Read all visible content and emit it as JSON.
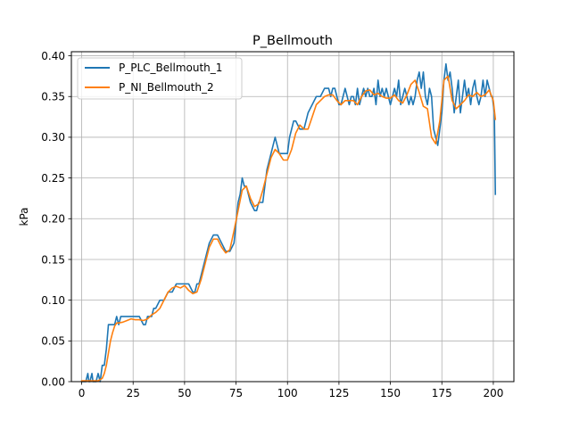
{
  "chart_data": {
    "type": "line",
    "title": "P_Bellmouth",
    "xlabel": "",
    "ylabel": "kPa",
    "xlim": [
      -5,
      210
    ],
    "ylim": [
      0.0,
      0.405
    ],
    "xticks": [
      0,
      25,
      50,
      75,
      100,
      125,
      150,
      175,
      200
    ],
    "yticks": [
      0.0,
      0.05,
      0.1,
      0.15,
      0.2,
      0.25,
      0.3,
      0.35,
      0.4
    ],
    "ytick_labels": [
      "0.00",
      "0.05",
      "0.10",
      "0.15",
      "0.20",
      "0.25",
      "0.30",
      "0.35",
      "0.40"
    ],
    "grid": true,
    "legend_position": "top-left",
    "series": [
      {
        "name": "P_PLC_Bellmouth_1",
        "color": "#1f77b4",
        "x": [
          0,
          2,
          3,
          3.5,
          4,
          5,
          5.5,
          6,
          7,
          8,
          9,
          9.5,
          10,
          11,
          12,
          13,
          14,
          15,
          16,
          17,
          18,
          19,
          20,
          21,
          22,
          24,
          26,
          28,
          30,
          31,
          32,
          33,
          34,
          35,
          36,
          38,
          40,
          42,
          44,
          46,
          48,
          50,
          52,
          54,
          55,
          56,
          57,
          58,
          60,
          62,
          64,
          66,
          68,
          70,
          72,
          74,
          76,
          77,
          78,
          79,
          80,
          82,
          84,
          85,
          86,
          88,
          90,
          92,
          93,
          94,
          95,
          96,
          98,
          100,
          101,
          102,
          103,
          104,
          106,
          108,
          110,
          112,
          114,
          116,
          118,
          120,
          121,
          122,
          123,
          124,
          125,
          126,
          127,
          128,
          129,
          130,
          131,
          132,
          133,
          134,
          135,
          136,
          137,
          138,
          139,
          140,
          141,
          142,
          143,
          144,
          145,
          146,
          147,
          148,
          149,
          150,
          151,
          152,
          153,
          154,
          155,
          156,
          157,
          158,
          159,
          160,
          161,
          162,
          163,
          164,
          165,
          166,
          167,
          168,
          169,
          170,
          171,
          172,
          173,
          174,
          175,
          176,
          177,
          178,
          179,
          180,
          181,
          182,
          183,
          184,
          185,
          186,
          187,
          188,
          189,
          190,
          191,
          192,
          193,
          194,
          195,
          196,
          197,
          198,
          199,
          199.5,
          200,
          200.5,
          201
        ],
        "values": [
          0.0,
          0.0,
          0.01,
          0.0,
          0.0,
          0.01,
          0.0,
          0.0,
          0.0,
          0.01,
          0.0,
          0.01,
          0.02,
          0.02,
          0.04,
          0.07,
          0.07,
          0.07,
          0.07,
          0.08,
          0.07,
          0.08,
          0.08,
          0.08,
          0.08,
          0.08,
          0.08,
          0.08,
          0.07,
          0.07,
          0.08,
          0.08,
          0.08,
          0.09,
          0.09,
          0.1,
          0.1,
          0.11,
          0.11,
          0.12,
          0.12,
          0.12,
          0.12,
          0.11,
          0.11,
          0.12,
          0.12,
          0.13,
          0.15,
          0.17,
          0.18,
          0.18,
          0.17,
          0.16,
          0.16,
          0.17,
          0.22,
          0.23,
          0.25,
          0.24,
          0.24,
          0.22,
          0.21,
          0.21,
          0.22,
          0.22,
          0.26,
          0.28,
          0.29,
          0.3,
          0.29,
          0.28,
          0.28,
          0.28,
          0.3,
          0.31,
          0.32,
          0.32,
          0.31,
          0.31,
          0.33,
          0.34,
          0.35,
          0.35,
          0.36,
          0.36,
          0.35,
          0.36,
          0.36,
          0.35,
          0.34,
          0.34,
          0.35,
          0.36,
          0.35,
          0.34,
          0.35,
          0.35,
          0.34,
          0.36,
          0.34,
          0.35,
          0.36,
          0.35,
          0.36,
          0.35,
          0.35,
          0.36,
          0.34,
          0.37,
          0.35,
          0.36,
          0.35,
          0.36,
          0.35,
          0.34,
          0.35,
          0.36,
          0.35,
          0.37,
          0.34,
          0.35,
          0.36,
          0.35,
          0.34,
          0.35,
          0.34,
          0.35,
          0.37,
          0.38,
          0.36,
          0.38,
          0.35,
          0.34,
          0.36,
          0.35,
          0.31,
          0.3,
          0.29,
          0.31,
          0.33,
          0.37,
          0.39,
          0.37,
          0.38,
          0.36,
          0.33,
          0.35,
          0.37,
          0.33,
          0.35,
          0.37,
          0.35,
          0.36,
          0.34,
          0.36,
          0.37,
          0.35,
          0.34,
          0.35,
          0.37,
          0.35,
          0.37,
          0.36,
          0.35,
          0.35,
          0.34,
          0.33,
          0.23
        ]
      },
      {
        "name": "P_NI_Bellmouth_2",
        "color": "#ff7f0e",
        "x": [
          0,
          4,
          8,
          10,
          11,
          12,
          13,
          14,
          15,
          16,
          17,
          18,
          20,
          22,
          24,
          26,
          28,
          30,
          32,
          34,
          36,
          38,
          40,
          42,
          44,
          46,
          48,
          50,
          52,
          54,
          56,
          58,
          60,
          62,
          64,
          66,
          68,
          70,
          72,
          74,
          76,
          78,
          80,
          82,
          84,
          86,
          88,
          90,
          92,
          94,
          96,
          98,
          100,
          102,
          104,
          106,
          108,
          110,
          112,
          114,
          116,
          118,
          120,
          122,
          124,
          126,
          128,
          130,
          132,
          134,
          136,
          138,
          140,
          142,
          144,
          146,
          148,
          150,
          152,
          154,
          156,
          158,
          160,
          162,
          164,
          166,
          168,
          170,
          172,
          174,
          176,
          178,
          180,
          182,
          184,
          186,
          188,
          190,
          192,
          194,
          196,
          198,
          200,
          201
        ],
        "values": [
          0.001,
          0.001,
          0.001,
          0.004,
          0.01,
          0.02,
          0.035,
          0.05,
          0.06,
          0.068,
          0.072,
          0.072,
          0.073,
          0.075,
          0.077,
          0.076,
          0.076,
          0.075,
          0.077,
          0.082,
          0.085,
          0.09,
          0.1,
          0.11,
          0.115,
          0.117,
          0.115,
          0.118,
          0.112,
          0.108,
          0.11,
          0.125,
          0.145,
          0.165,
          0.175,
          0.175,
          0.165,
          0.158,
          0.162,
          0.185,
          0.21,
          0.235,
          0.24,
          0.225,
          0.215,
          0.218,
          0.235,
          0.255,
          0.275,
          0.285,
          0.28,
          0.272,
          0.272,
          0.285,
          0.305,
          0.315,
          0.31,
          0.31,
          0.325,
          0.34,
          0.345,
          0.35,
          0.352,
          0.352,
          0.345,
          0.34,
          0.345,
          0.345,
          0.345,
          0.34,
          0.35,
          0.357,
          0.358,
          0.352,
          0.354,
          0.35,
          0.348,
          0.348,
          0.352,
          0.345,
          0.342,
          0.352,
          0.365,
          0.37,
          0.355,
          0.338,
          0.335,
          0.3,
          0.292,
          0.32,
          0.37,
          0.375,
          0.345,
          0.335,
          0.34,
          0.345,
          0.352,
          0.35,
          0.355,
          0.35,
          0.352,
          0.358,
          0.345,
          0.322
        ]
      }
    ]
  }
}
